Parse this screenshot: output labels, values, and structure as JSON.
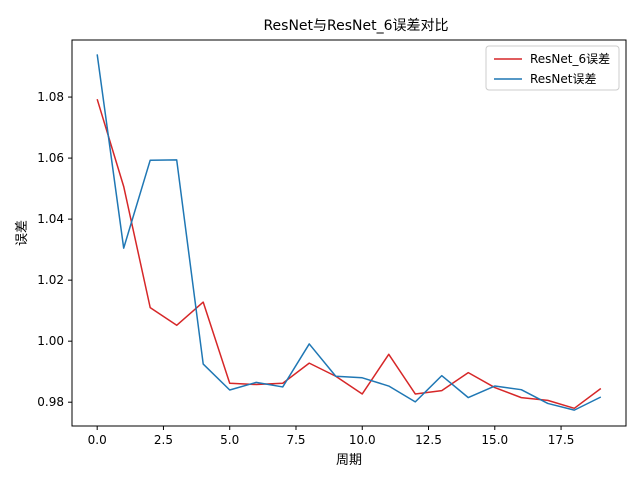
{
  "chart_data": {
    "type": "line",
    "title": "ResNet与ResNet_6误差对比",
    "xlabel": "周期",
    "ylabel": "误差",
    "xlim": [
      -0.95,
      19.95
    ],
    "ylim": [
      0.9722,
      1.0987
    ],
    "xticks": [
      0.0,
      2.5,
      5.0,
      7.5,
      10.0,
      12.5,
      15.0,
      17.5
    ],
    "xtick_labels": [
      "0.0",
      "2.5",
      "5.0",
      "7.5",
      "10.0",
      "12.5",
      "15.0",
      "17.5"
    ],
    "yticks": [
      0.98,
      1.0,
      1.02,
      1.04,
      1.06,
      1.08
    ],
    "ytick_labels": [
      "0.98",
      "1.00",
      "1.02",
      "1.04",
      "1.06",
      "1.08"
    ],
    "grid": false,
    "legend_position": "top-right",
    "x": [
      0,
      1,
      2,
      3,
      4,
      5,
      6,
      7,
      8,
      9,
      10,
      11,
      12,
      13,
      14,
      15,
      16,
      17,
      18,
      19
    ],
    "series": [
      {
        "name": "ResNet_6误差",
        "color": "#d62728",
        "values": [
          1.0793,
          1.0507,
          1.011,
          1.0052,
          1.0128,
          0.9862,
          0.9858,
          0.9862,
          0.9928,
          0.9885,
          0.9827,
          0.9957,
          0.9827,
          0.9838,
          0.9897,
          0.9848,
          0.9815,
          0.9806,
          0.978,
          0.9845
        ]
      },
      {
        "name": "ResNet误差",
        "color": "#1f77b4",
        "values": [
          1.094,
          1.0305,
          1.0593,
          1.0594,
          0.9925,
          0.984,
          0.9865,
          0.985,
          0.9991,
          0.9885,
          0.988,
          0.9853,
          0.9801,
          0.9887,
          0.9815,
          0.9853,
          0.9841,
          0.9796,
          0.9774,
          0.9817
        ]
      }
    ]
  }
}
